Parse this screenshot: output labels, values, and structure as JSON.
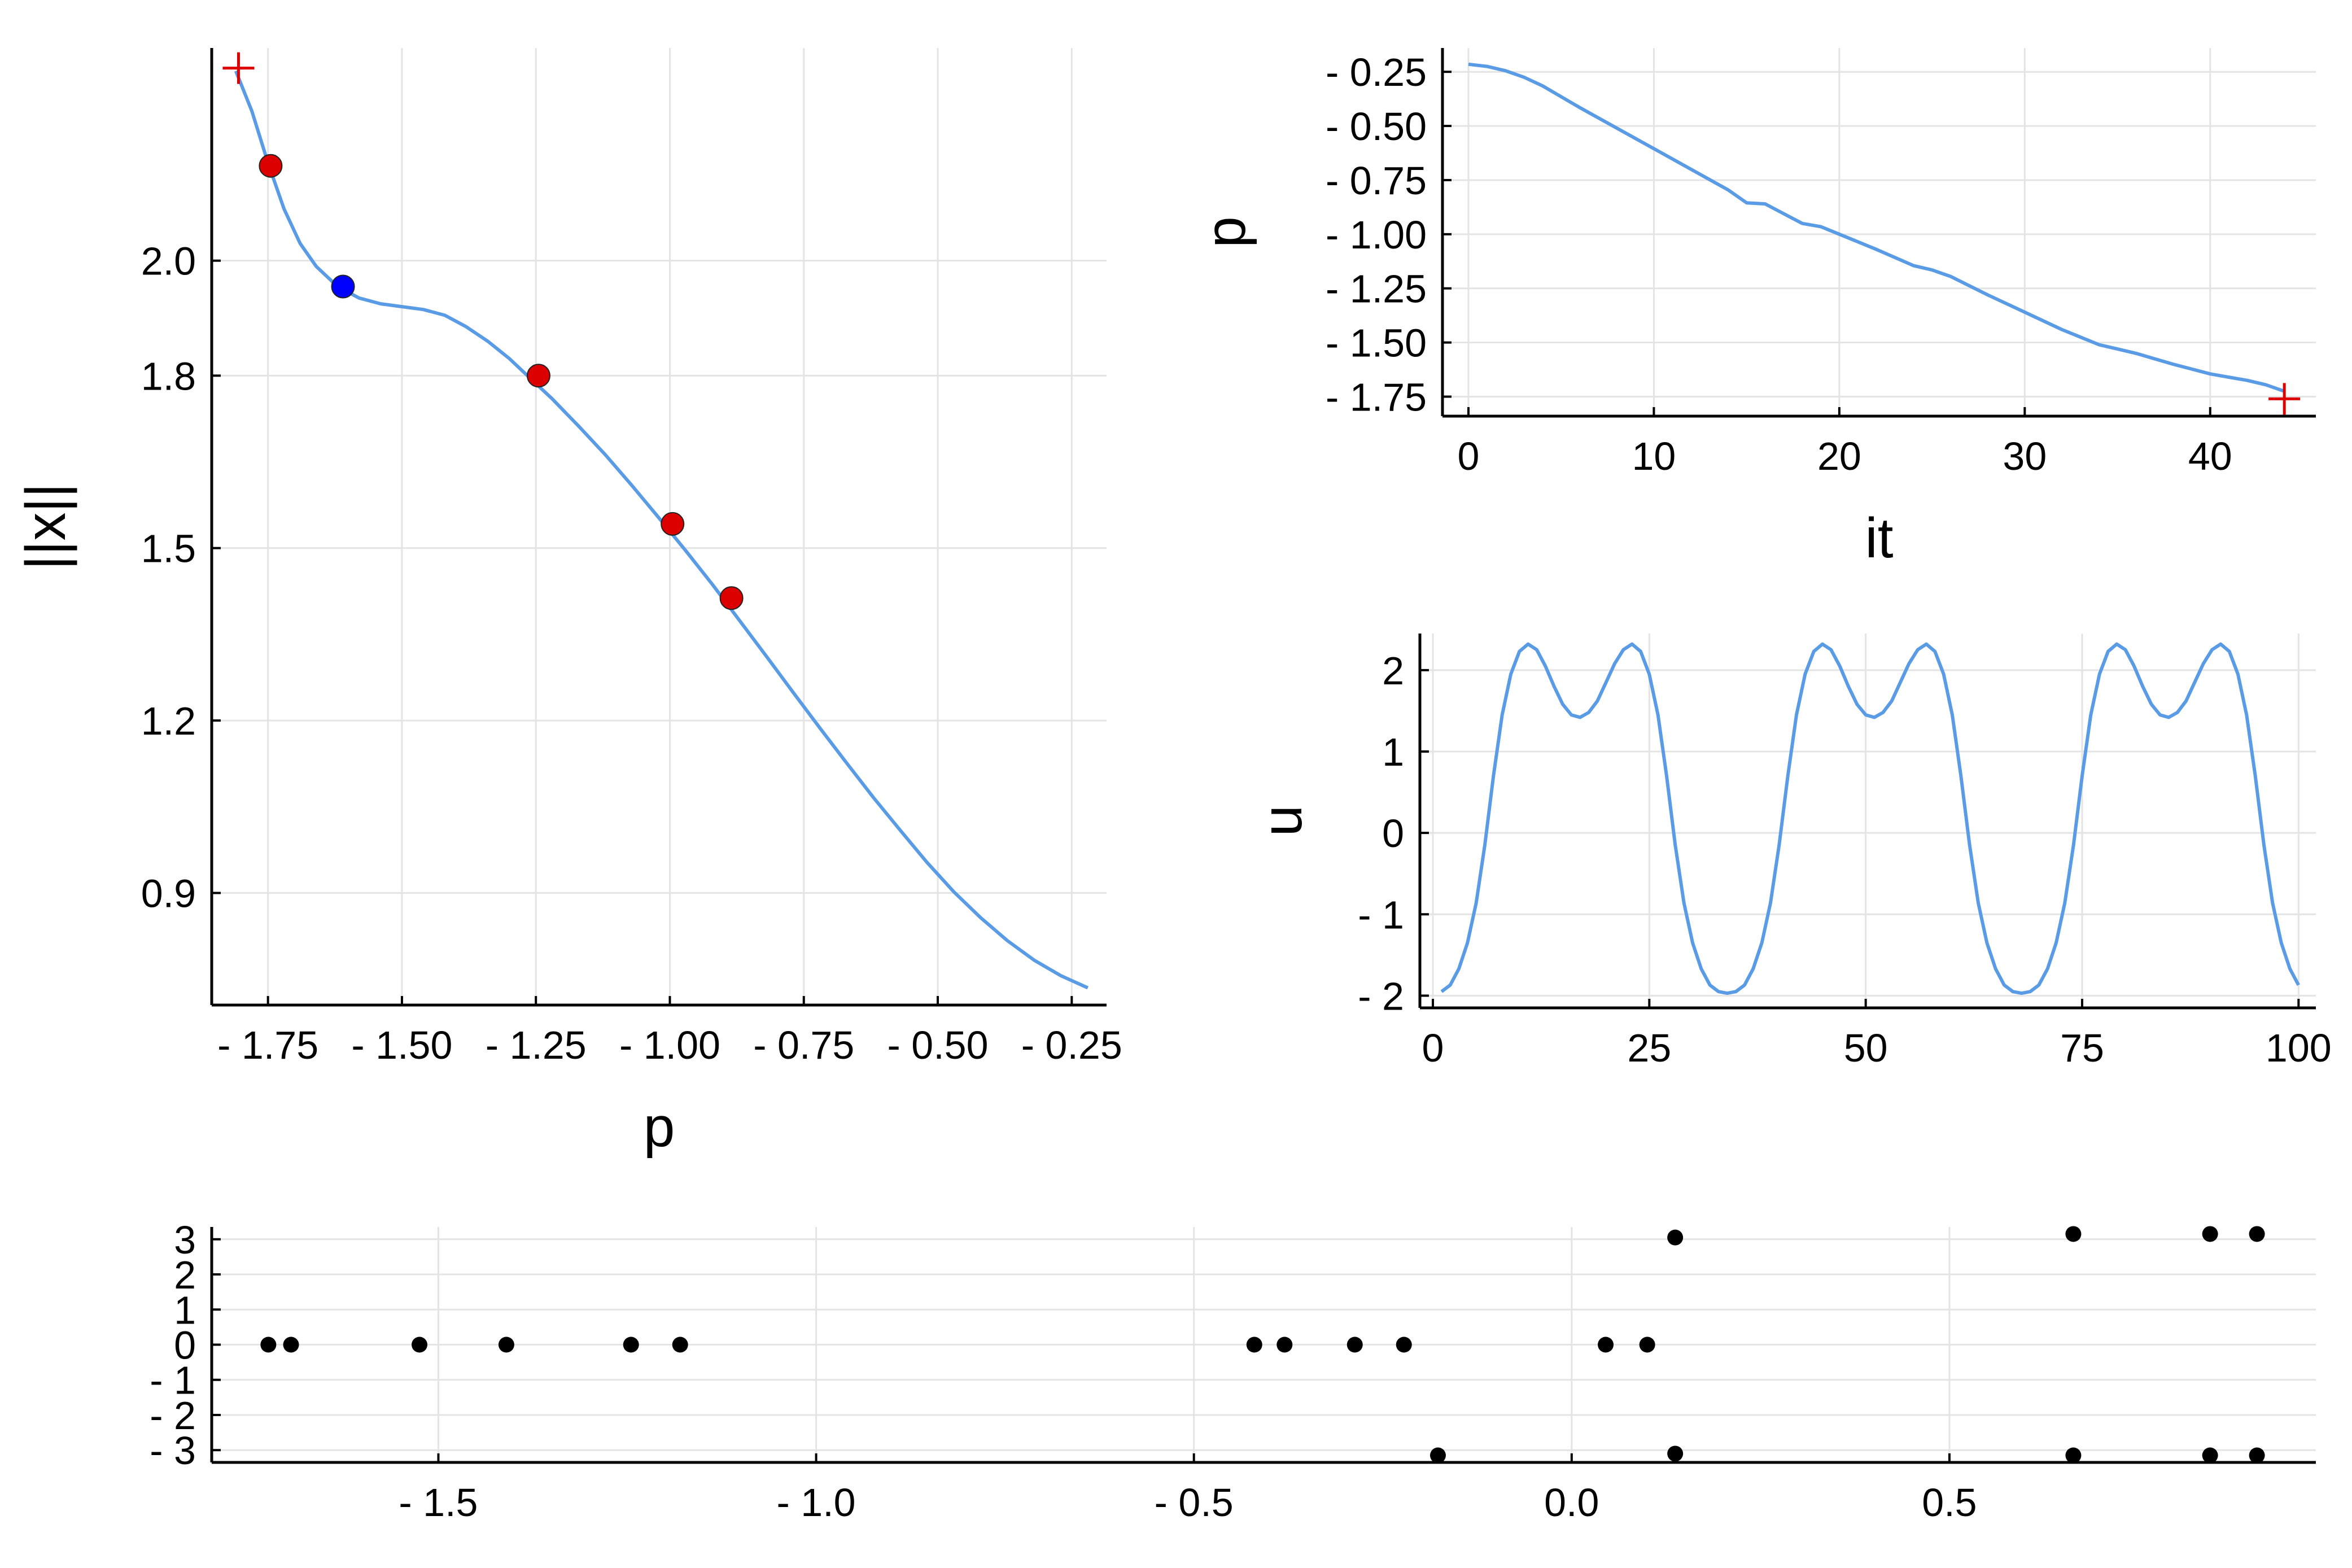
{
  "chart_data": [
    {
      "type": "line",
      "xlabel": "p",
      "ylabel": "||x||",
      "xlim": [
        -1.855,
        -0.185
      ],
      "ylim": [
        0.705,
        2.37
      ],
      "xticks": [
        -1.75,
        -1.5,
        -1.25,
        -1.0,
        -0.75,
        -0.5,
        -0.25
      ],
      "xtick_labels": [
        "- 1.75",
        "- 1.50",
        "- 1.25",
        "- 1.00",
        "- 0.75",
        "- 0.50",
        "- 0.25"
      ],
      "yticks": [
        0.9,
        1.2,
        1.5,
        1.8,
        2.0
      ],
      "ytick_labels": [
        "0.9",
        "1.2",
        "1.5",
        "1.8",
        "2.0"
      ],
      "grid": true,
      "series": [
        {
          "color": "#5a9be6",
          "x": [
            -1.81,
            -1.78,
            -1.75,
            -1.72,
            -1.69,
            -1.66,
            -1.62,
            -1.58,
            -1.54,
            -1.5,
            -1.46,
            -1.42,
            -1.38,
            -1.34,
            -1.3,
            -1.26,
            -1.22,
            -1.17,
            -1.12,
            -1.07,
            -1.02,
            -0.97,
            -0.92,
            -0.87,
            -0.82,
            -0.77,
            -0.72,
            -0.67,
            -0.62,
            -0.57,
            -0.52,
            -0.47,
            -0.42,
            -0.37,
            -0.32,
            -0.27,
            -0.22
          ],
          "y": [
            2.33,
            2.26,
            2.17,
            2.09,
            2.03,
            1.99,
            1.955,
            1.935,
            1.925,
            1.92,
            1.915,
            1.905,
            1.885,
            1.86,
            1.83,
            1.795,
            1.76,
            1.712,
            1.662,
            1.608,
            1.552,
            1.495,
            1.436,
            1.374,
            1.312,
            1.249,
            1.187,
            1.126,
            1.066,
            1.009,
            0.953,
            0.902,
            0.857,
            0.817,
            0.783,
            0.756,
            0.735
          ]
        }
      ],
      "markers": [
        {
          "x": -1.805,
          "y": 2.335,
          "style": "cross",
          "color": "#dd0000"
        },
        {
          "x": -1.745,
          "y": 2.165,
          "style": "dot",
          "color": "#dd0000"
        },
        {
          "x": -1.61,
          "y": 1.955,
          "style": "dot",
          "color": "#0000ff"
        },
        {
          "x": -1.245,
          "y": 1.8,
          "style": "dot",
          "color": "#dd0000"
        },
        {
          "x": -0.995,
          "y": 1.542,
          "style": "dot",
          "color": "#dd0000"
        },
        {
          "x": -0.885,
          "y": 1.413,
          "style": "dot",
          "color": "#dd0000"
        }
      ]
    },
    {
      "type": "line",
      "xlabel": "it",
      "ylabel": "p",
      "xlim": [
        -1.4,
        45.7
      ],
      "ylim": [
        -1.84,
        -0.14
      ],
      "xticks": [
        0,
        10,
        20,
        30,
        40
      ],
      "xtick_labels": [
        "0",
        "10",
        "20",
        "30",
        "40"
      ],
      "yticks": [
        -0.25,
        -0.5,
        -0.75,
        -1.0,
        -1.25,
        -1.5,
        -1.75
      ],
      "ytick_labels": [
        "- 0.25",
        "- 0.50",
        "- 0.75",
        "- 1.00",
        "- 1.25",
        "- 1.50",
        "- 1.75"
      ],
      "grid": true,
      "series": [
        {
          "color": "#5a9be6",
          "x": [
            0,
            1,
            2,
            3,
            4,
            5,
            6,
            8,
            10,
            12,
            14,
            15,
            16,
            17,
            18,
            19,
            20,
            22,
            24,
            25,
            26,
            28,
            30,
            32,
            34,
            35,
            36,
            38,
            40,
            41,
            42,
            43,
            44
          ],
          "y": [
            -0.215,
            -0.225,
            -0.245,
            -0.275,
            -0.315,
            -0.365,
            -0.415,
            -0.51,
            -0.605,
            -0.7,
            -0.795,
            -0.855,
            -0.86,
            -0.905,
            -0.95,
            -0.965,
            -1.0,
            -1.07,
            -1.145,
            -1.165,
            -1.195,
            -1.28,
            -1.36,
            -1.44,
            -1.51,
            -1.53,
            -1.55,
            -1.6,
            -1.645,
            -1.66,
            -1.675,
            -1.695,
            -1.725
          ]
        }
      ],
      "markers": [
        {
          "x": 44,
          "y": -1.76,
          "style": "cross",
          "color": "#dd0000"
        }
      ]
    },
    {
      "type": "line",
      "xlabel": "",
      "ylabel": "u",
      "xlim": [
        -1.5,
        102
      ],
      "ylim": [
        -2.15,
        2.45
      ],
      "xticks": [
        0,
        25,
        50,
        75,
        100
      ],
      "xtick_labels": [
        "0",
        "25",
        "50",
        "75",
        "100"
      ],
      "yticks": [
        2,
        1,
        0,
        -1,
        -2
      ],
      "ytick_labels": [
        "2",
        "1",
        "0",
        "- 1",
        "- 2"
      ],
      "grid": true,
      "series": [
        {
          "color": "#5a9be6",
          "x": [
            1,
            2,
            3,
            4,
            5,
            6,
            7,
            8,
            9,
            10,
            11,
            12,
            13,
            14,
            15,
            16,
            17,
            18,
            19,
            20,
            21,
            22,
            23,
            24,
            25,
            26,
            27,
            28,
            29,
            30,
            31,
            32,
            33,
            34,
            35,
            36,
            37,
            38,
            39,
            40,
            41,
            42,
            43,
            44,
            45,
            46,
            47,
            48,
            49,
            50,
            51,
            52,
            53,
            54,
            55,
            56,
            57,
            58,
            59,
            60,
            61,
            62,
            63,
            64,
            65,
            66,
            67,
            68,
            69,
            70,
            71,
            72,
            73,
            74,
            75,
            76,
            77,
            78,
            79,
            80,
            81,
            82,
            83,
            84,
            85,
            86,
            87,
            88,
            89,
            90,
            91,
            92,
            93,
            94,
            95,
            96,
            97,
            98,
            99,
            100
          ],
          "y": [
            -1.95,
            -1.87,
            -1.67,
            -1.35,
            -0.86,
            -0.15,
            0.7,
            1.45,
            1.95,
            2.23,
            2.32,
            2.25,
            2.05,
            1.8,
            1.58,
            1.45,
            1.42,
            1.48,
            1.62,
            1.85,
            2.08,
            2.25,
            2.32,
            2.23,
            1.95,
            1.45,
            0.7,
            -0.15,
            -0.86,
            -1.35,
            -1.67,
            -1.87,
            -1.95,
            -1.97,
            -1.95,
            -1.87,
            -1.67,
            -1.35,
            -0.86,
            -0.15,
            0.7,
            1.45,
            1.95,
            2.23,
            2.32,
            2.25,
            2.05,
            1.8,
            1.58,
            1.45,
            1.42,
            1.48,
            1.62,
            1.85,
            2.08,
            2.25,
            2.32,
            2.23,
            1.95,
            1.45,
            0.7,
            -0.15,
            -0.86,
            -1.35,
            -1.67,
            -1.87,
            -1.95,
            -1.97,
            -1.95,
            -1.87,
            -1.67,
            -1.35,
            -0.86,
            -0.15,
            0.7,
            1.45,
            1.95,
            2.23,
            2.32,
            2.25,
            2.05,
            1.8,
            1.58,
            1.45,
            1.42,
            1.48,
            1.62,
            1.85,
            2.08,
            2.25,
            2.32,
            2.23,
            1.95,
            1.45,
            0.7,
            -0.15,
            -0.86,
            -1.35,
            -1.67,
            -1.87
          ]
        }
      ]
    },
    {
      "type": "scatter",
      "xlabel": "",
      "ylabel": "",
      "xlim": [
        -1.8,
        0.985
      ],
      "ylim": [
        -3.35,
        3.35
      ],
      "xticks": [
        -1.5,
        -1.0,
        -0.5,
        0.0,
        0.5
      ],
      "xtick_labels": [
        "- 1.5",
        "- 1.0",
        "- 0.5",
        "0.0",
        "0.5"
      ],
      "yticks": [
        3,
        2,
        1,
        0,
        -1,
        -2,
        -3
      ],
      "ytick_labels": [
        "3",
        "2",
        "1",
        "0",
        "- 1",
        "- 2",
        "- 3"
      ],
      "grid": true,
      "series": [
        {
          "color": "#000000",
          "x": [
            -1.725,
            -1.695,
            -1.525,
            -1.41,
            -1.245,
            -1.18,
            -0.42,
            -0.38,
            -0.287,
            -0.222,
            0.045,
            0.1,
            -0.177,
            0.137,
            0.137,
            0.664,
            0.664,
            0.845,
            0.845,
            0.907,
            0.907
          ],
          "y": [
            0,
            0,
            0,
            0,
            0,
            0,
            0,
            0,
            0,
            0,
            0,
            0,
            -3.15,
            3.05,
            -3.1,
            3.15,
            -3.15,
            3.15,
            -3.15,
            3.15,
            -3.15
          ]
        }
      ]
    }
  ]
}
